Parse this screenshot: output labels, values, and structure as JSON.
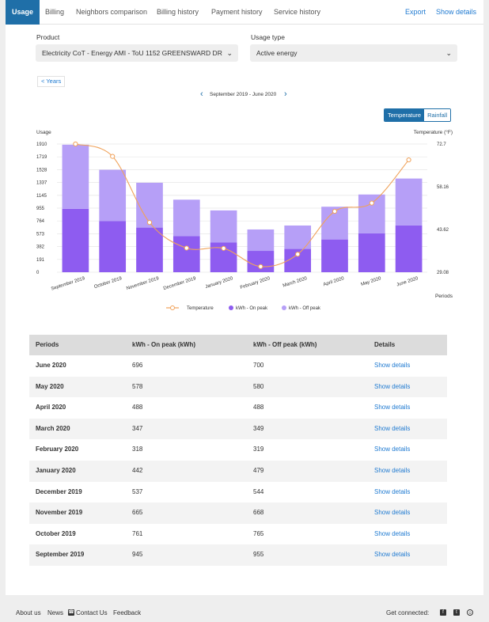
{
  "tabs": [
    {
      "label": "Usage",
      "active": true
    },
    {
      "label": "Billing"
    },
    {
      "label": "Neighbors comparison"
    },
    {
      "label": "Billing history"
    },
    {
      "label": "Payment history"
    },
    {
      "label": "Service history"
    }
  ],
  "actions": {
    "export": "Export",
    "show_details": "Show details"
  },
  "product": {
    "label": "Product",
    "value": "Electricity CoT - Energy AMI - ToU 1152 GREENSWARD DR"
  },
  "usage_type": {
    "label": "Usage type",
    "value": "Active energy"
  },
  "years_button": "< Years",
  "period_range": "September 2019 - June 2020",
  "toggle": {
    "temperature": "Temperature",
    "rainfall": "Rainfall",
    "selected": "temperature"
  },
  "chart_data": {
    "type": "bar",
    "stacked": true,
    "categories": [
      "September 2019",
      "October 2019",
      "November 2019",
      "December 2019",
      "January 2020",
      "February 2020",
      "March 2020",
      "April 2020",
      "May 2020",
      "June 2020"
    ],
    "series": [
      {
        "name": "kWh - On peak",
        "color": "#8e5cf0",
        "values": [
          945,
          761,
          665,
          537,
          442,
          318,
          347,
          488,
          578,
          696
        ]
      },
      {
        "name": "kWh - Off peak",
        "color": "#b69ff7",
        "values": [
          955,
          765,
          668,
          544,
          479,
          319,
          349,
          488,
          580,
          700
        ]
      }
    ],
    "line": {
      "name": "Temperature",
      "color": "#f0a25a",
      "axis": "right",
      "values": [
        72.7,
        68.5,
        46.0,
        37.3,
        37.2,
        31.0,
        35.2,
        49.8,
        52.6,
        67.3
      ]
    },
    "ylabel": "Usage",
    "y2label": "Temperature (°F)",
    "xlabel": "Periods",
    "yticks": [
      "0",
      "191",
      "382",
      "573",
      "764",
      "955",
      "1145",
      "1337",
      "1528",
      "1719",
      "1910"
    ],
    "ylim": [
      0,
      1910
    ],
    "y2ticks": [
      "29.08",
      "43.62",
      "58.16",
      "72.7"
    ],
    "y2lim": [
      29.08,
      72.7
    ],
    "grid": true,
    "legend_position": "bottom"
  },
  "table": {
    "headers": [
      "Periods",
      "kWh - On peak (kWh)",
      "kWh - Off peak (kWh)",
      "Details"
    ],
    "rows": [
      {
        "period": "June 2020",
        "on": "696",
        "off": "700",
        "link": "Show details"
      },
      {
        "period": "May 2020",
        "on": "578",
        "off": "580",
        "link": "Show details"
      },
      {
        "period": "April 2020",
        "on": "488",
        "off": "488",
        "link": "Show details"
      },
      {
        "period": "March 2020",
        "on": "347",
        "off": "349",
        "link": "Show details"
      },
      {
        "period": "February 2020",
        "on": "318",
        "off": "319",
        "link": "Show details"
      },
      {
        "period": "January 2020",
        "on": "442",
        "off": "479",
        "link": "Show details"
      },
      {
        "period": "December 2019",
        "on": "537",
        "off": "544",
        "link": "Show details"
      },
      {
        "period": "November 2019",
        "on": "665",
        "off": "668",
        "link": "Show details"
      },
      {
        "period": "October 2019",
        "on": "761",
        "off": "765",
        "link": "Show details"
      },
      {
        "period": "September 2019",
        "on": "945",
        "off": "955",
        "link": "Show details"
      }
    ]
  },
  "footer": {
    "about": "About us",
    "news": "News",
    "contact": "Contact Us",
    "feedback": "Feedback",
    "connected": "Get connected:",
    "icons": [
      "facebook-icon",
      "twitter-icon",
      "instagram-icon"
    ]
  }
}
